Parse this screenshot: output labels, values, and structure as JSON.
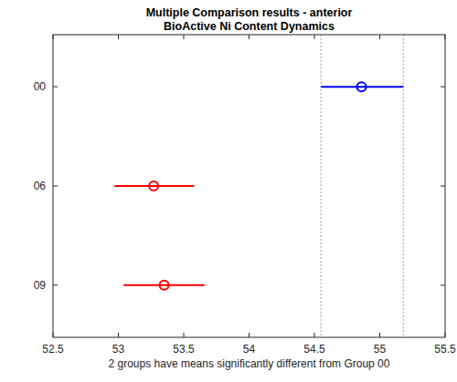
{
  "chart_data": {
    "type": "interval",
    "orientation": "horizontal",
    "title": [
      "Multiple Comparison results - anterior",
      "BioActive Ni Content Dynamics"
    ],
    "x_label": "2 groups have means significantly different from Group 00",
    "categories": [
      "00",
      "06",
      "09"
    ],
    "values": [
      54.86,
      53.27,
      53.35
    ],
    "lower": [
      54.55,
      52.97,
      53.04
    ],
    "upper": [
      55.18,
      53.58,
      53.66
    ],
    "colors": [
      "#0000ff",
      "#ff0000",
      "#ff0000"
    ],
    "marker": "circle",
    "xlim": [
      52.5,
      55.5
    ],
    "xticks": [
      52.5,
      53,
      53.5,
      54,
      54.5,
      55,
      55.5
    ],
    "grid": false
  }
}
